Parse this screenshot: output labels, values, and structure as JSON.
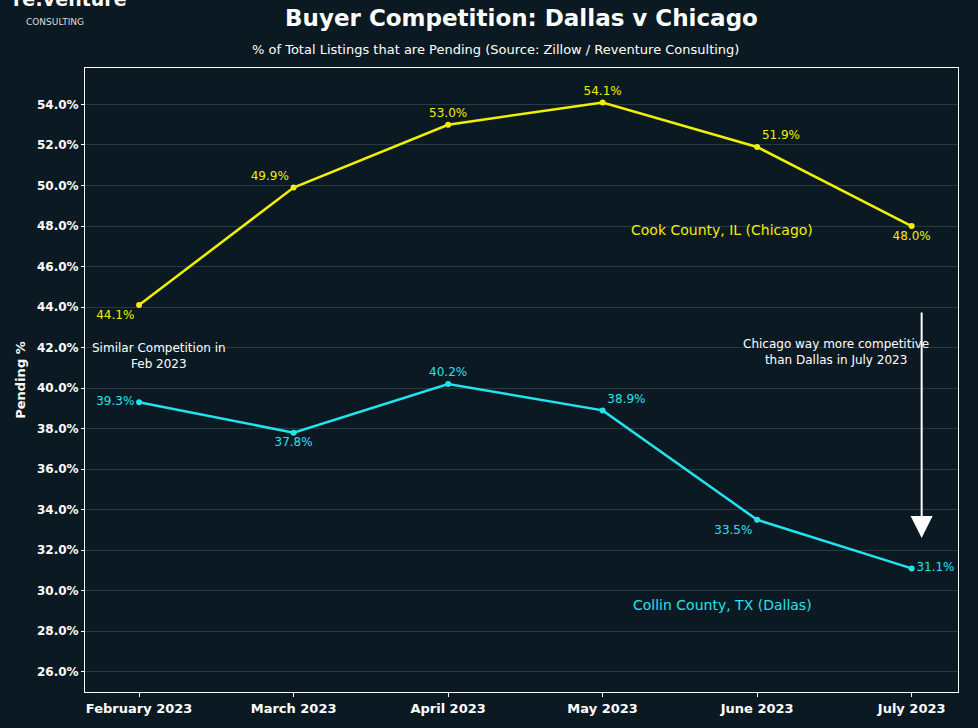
{
  "chart_data": {
    "type": "line",
    "title": "Buyer Competition: Dallas v Chicago",
    "subtitle": "% of Total Listings that are Pending (Source: Zillow / Reventure Consulting)",
    "logo": {
      "text": "re:venture",
      "subtext": "CONSULTING"
    },
    "y_label": "Pending %",
    "categories": [
      "February 2023",
      "March 2023",
      "April 2023",
      "May 2023",
      "June 2023",
      "July 2023"
    ],
    "series": [
      {
        "name": "Cook County, IL (Chicago)",
        "color": "#f0f000",
        "values": [
          44.1,
          49.9,
          53.0,
          54.1,
          51.9,
          48.0
        ],
        "value_labels": [
          "44.1%",
          "49.9%",
          "53.0%",
          "54.1%",
          "51.9%",
          "48.0%"
        ]
      },
      {
        "name": "Collin County, TX (Dallas)",
        "color": "#22e3ee",
        "values": [
          39.3,
          37.8,
          40.2,
          38.9,
          33.5,
          31.1
        ],
        "value_labels": [
          "39.3%",
          "37.8%",
          "40.2%",
          "38.9%",
          "33.5%",
          "31.1%"
        ]
      }
    ],
    "annotations": [
      [
        "Similar Competition in",
        "Feb 2023"
      ],
      [
        "Chicago way more competitive",
        "than Dallas in July 2023"
      ]
    ],
    "ylim": [
      25,
      55.8
    ],
    "yticks": [
      {
        "value": 26,
        "label": "26.0%"
      },
      {
        "value": 28,
        "label": "28.0%"
      },
      {
        "value": 30,
        "label": "30.0%"
      },
      {
        "value": 32,
        "label": "32.0%"
      },
      {
        "value": 34,
        "label": "34.0%"
      },
      {
        "value": 36,
        "label": "36.0%"
      },
      {
        "value": 38,
        "label": "38.0%"
      },
      {
        "value": 40,
        "label": "40.0%"
      },
      {
        "value": 42,
        "label": "42.0%"
      },
      {
        "value": 44,
        "label": "44.0%"
      },
      {
        "value": 46,
        "label": "46.0%"
      },
      {
        "value": 48,
        "label": "48.0%"
      },
      {
        "value": 50,
        "label": "50.0%"
      },
      {
        "value": 52,
        "label": "52.0%"
      },
      {
        "value": 54,
        "label": "54.0%"
      }
    ],
    "grid": true,
    "data_labels": true,
    "marker": "circle"
  }
}
